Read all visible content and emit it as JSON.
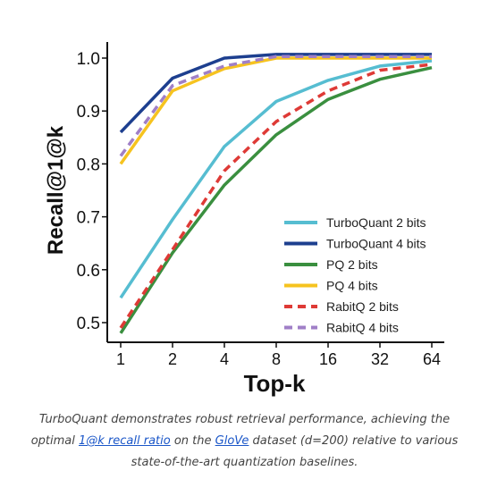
{
  "chart_data": {
    "type": "line",
    "title": "",
    "xlabel": "Top-k",
    "ylabel": "Recall@1@k",
    "x": [
      "1",
      "2",
      "4",
      "8",
      "16",
      "32",
      "64"
    ],
    "yticks": [
      "0.5",
      "0.6",
      "0.7",
      "0.8",
      "0.9",
      "1.0"
    ],
    "ylim": [
      0.48,
      1.01
    ],
    "grid": false,
    "legend_position": "bottom-right",
    "series": [
      {
        "name": "TurboQuant 2 bits",
        "color": "#56bdd1",
        "dash": false,
        "values": [
          0.547,
          0.695,
          0.833,
          0.918,
          0.958,
          0.985,
          0.995
        ]
      },
      {
        "name": "TurboQuant 4 bits",
        "color": "#1d3f8f",
        "dash": false,
        "values": [
          0.86,
          0.962,
          1.0,
          1.007,
          1.007,
          1.007,
          1.007
        ]
      },
      {
        "name": "PQ 2 bits",
        "color": "#3a8f3f",
        "dash": false,
        "values": [
          0.48,
          0.632,
          0.76,
          0.855,
          0.922,
          0.96,
          0.982
        ]
      },
      {
        "name": "PQ 4 bits",
        "color": "#f6c31f",
        "dash": false,
        "values": [
          0.8,
          0.938,
          0.98,
          1.0,
          1.0,
          1.0,
          1.0
        ]
      },
      {
        "name": "RabitQ 2 bits",
        "color": "#de3a36",
        "dash": true,
        "values": [
          0.49,
          0.638,
          0.787,
          0.88,
          0.938,
          0.977,
          0.988
        ]
      },
      {
        "name": "RabitQ 4 bits",
        "color": "#a07fc7",
        "dash": true,
        "values": [
          0.815,
          0.948,
          0.985,
          1.003,
          1.003,
          1.003,
          1.003
        ]
      }
    ]
  },
  "caption": {
    "line1": "TurboQuant demonstrates robust retrieval performance, achieving the",
    "line2_before": "optimal ",
    "link1": "1@k recall ratio",
    "line2_mid": " on the ",
    "link2": "GloVe",
    "line2_after": " dataset (d=200) relative to various",
    "line3": "state-of-the-art quantization baselines."
  }
}
